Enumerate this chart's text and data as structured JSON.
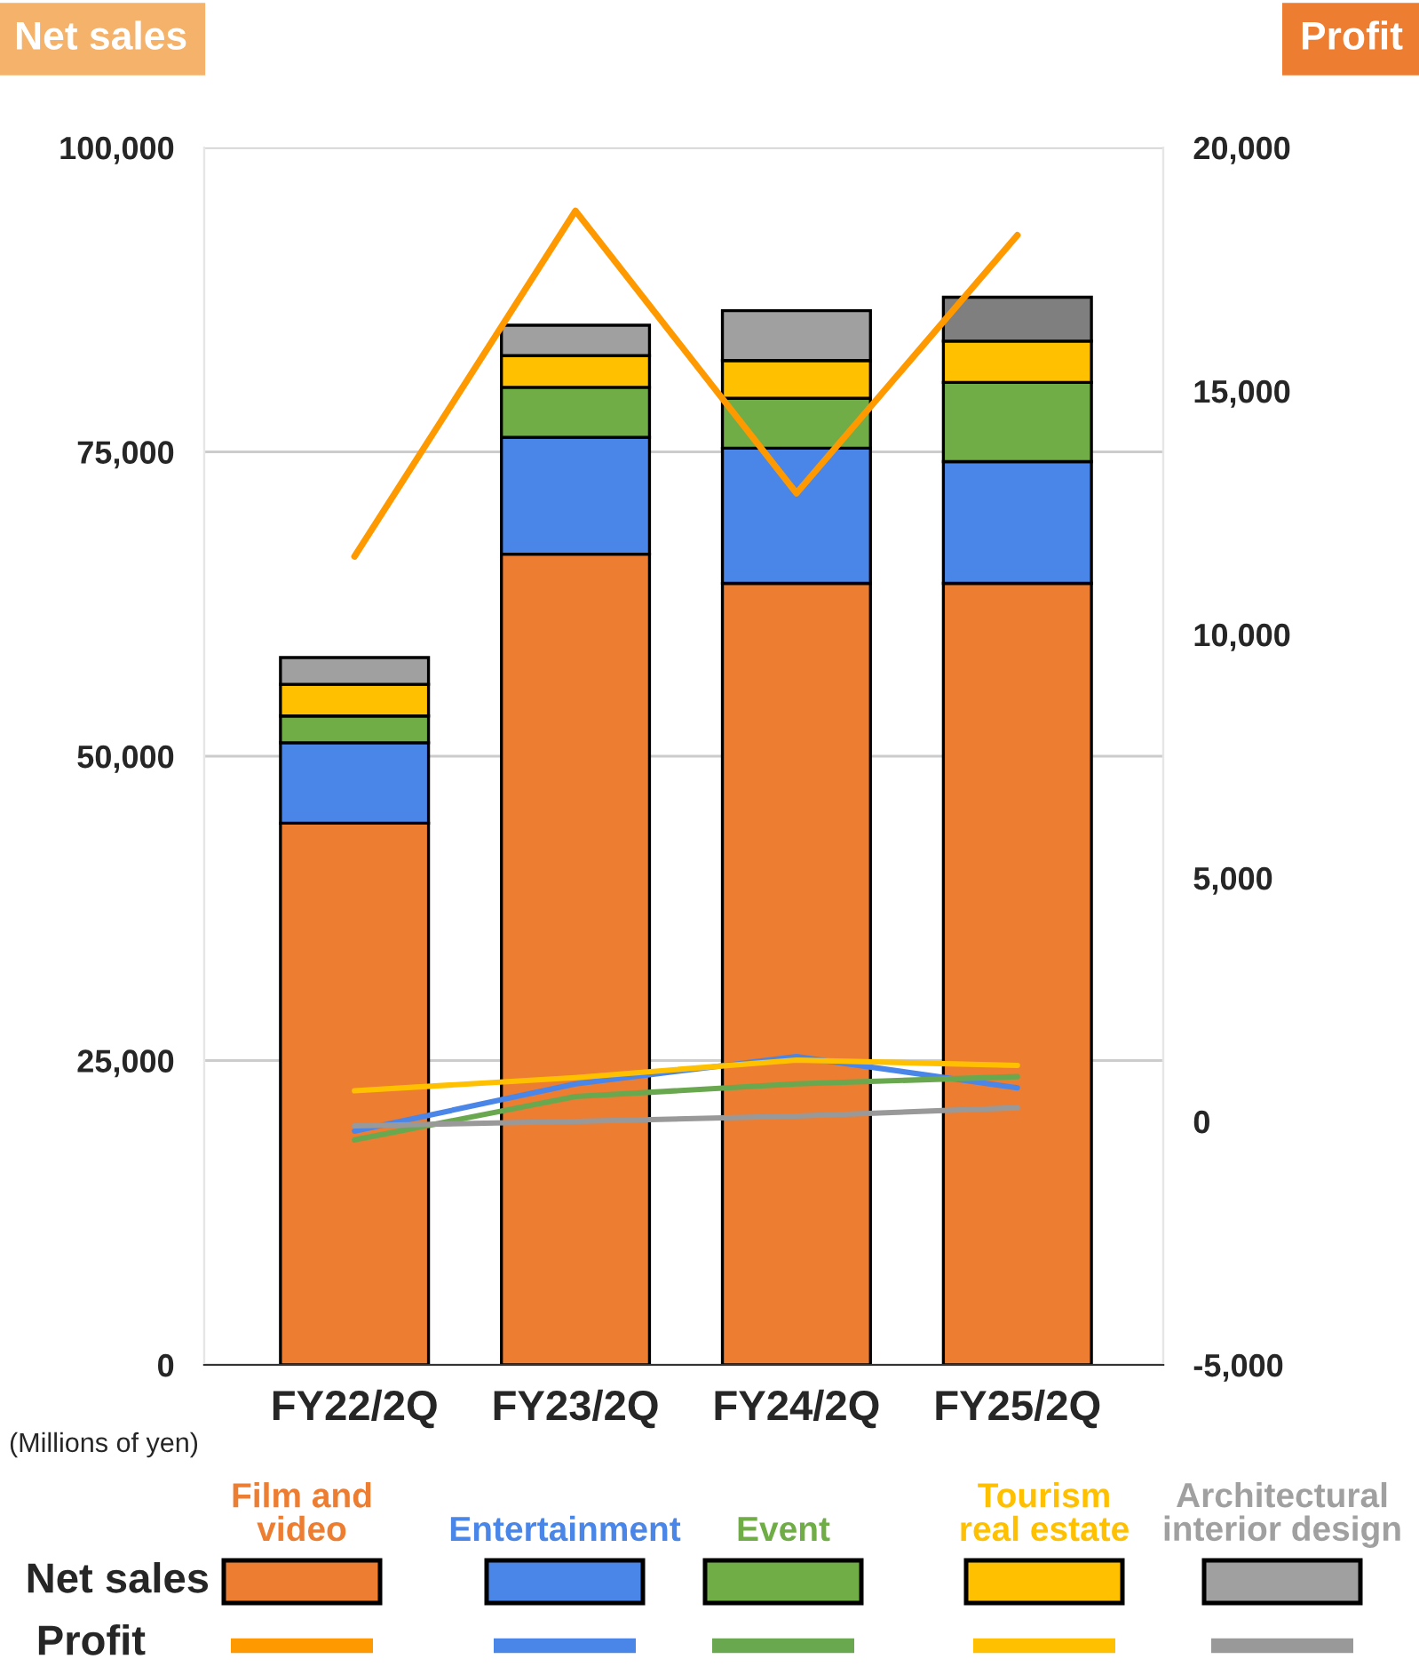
{
  "chart_data": {
    "type": "bar",
    "stacked": true,
    "ylabel": "Net sales",
    "y2label": "Profit",
    "categories": [
      "FY22/2Q",
      "FY23/2Q",
      "FY24/2Q",
      "FY25/2Q"
    ],
    "series": [
      {
        "name": "Film and\nvideo",
        "color": "#ed7d31",
        "values": [
          44500,
          66600,
          64200,
          64200
        ]
      },
      {
        "name": "Entertainment",
        "color": "#4a86e8",
        "values": [
          6600,
          9600,
          11100,
          10000
        ]
      },
      {
        "name": "Event",
        "color": "#70ad47",
        "values": [
          2200,
          4100,
          4100,
          6500
        ]
      },
      {
        "name": "Tourism\nreal estate",
        "color": "#ffc000",
        "values": [
          2600,
          2600,
          3100,
          3400
        ]
      },
      {
        "name": "Architectural\ninterior design",
        "color": "#a0a0a0",
        "colors": [
          "#a0a0a0",
          "#a0a0a0",
          "#a0a0a0",
          "#7f7f7f"
        ],
        "values": [
          2200,
          2500,
          4100,
          3600
        ]
      },
      {
        "type": "line",
        "axis": "y2",
        "color": "#ff9900",
        "values": [
          11600,
          18700,
          12900,
          18200
        ]
      },
      {
        "type": "line",
        "axis": "y2",
        "color": "#4a86e8",
        "values": [
          -200,
          770,
          1330,
          690
        ]
      },
      {
        "type": "line",
        "axis": "y2",
        "color": "#6aa84f",
        "values": [
          -380,
          510,
          770,
          920
        ]
      },
      {
        "type": "line",
        "axis": "y2",
        "color": "#ffc000",
        "values": [
          630,
          900,
          1260,
          1150
        ]
      },
      {
        "type": "line",
        "axis": "y2",
        "color": "#999999",
        "values": [
          -90,
          0,
          110,
          280
        ]
      }
    ],
    "ylim": [
      0,
      100000
    ],
    "yticks": [
      {
        "value": 0,
        "label": "0"
      },
      {
        "value": 25000,
        "label": "25,000"
      },
      {
        "value": 50000,
        "label": "50,000"
      },
      {
        "value": 75000,
        "label": "75,000"
      },
      {
        "value": 100000,
        "label": "100,000"
      }
    ],
    "y2lim": [
      -5000,
      20000
    ],
    "y2ticks": [
      {
        "value": -5000,
        "label": "-5,000"
      },
      {
        "value": 0,
        "label": "0"
      },
      {
        "value": 5000,
        "label": "5,000"
      },
      {
        "value": 10000,
        "label": "10,000"
      },
      {
        "value": 15000,
        "label": "15,000"
      },
      {
        "value": 20000,
        "label": "20,000"
      }
    ],
    "grid": "y",
    "legend": "bottom",
    "line_style": "solid",
    "marker": "none",
    "annotations": [
      "(Millions of yen)"
    ]
  }
}
